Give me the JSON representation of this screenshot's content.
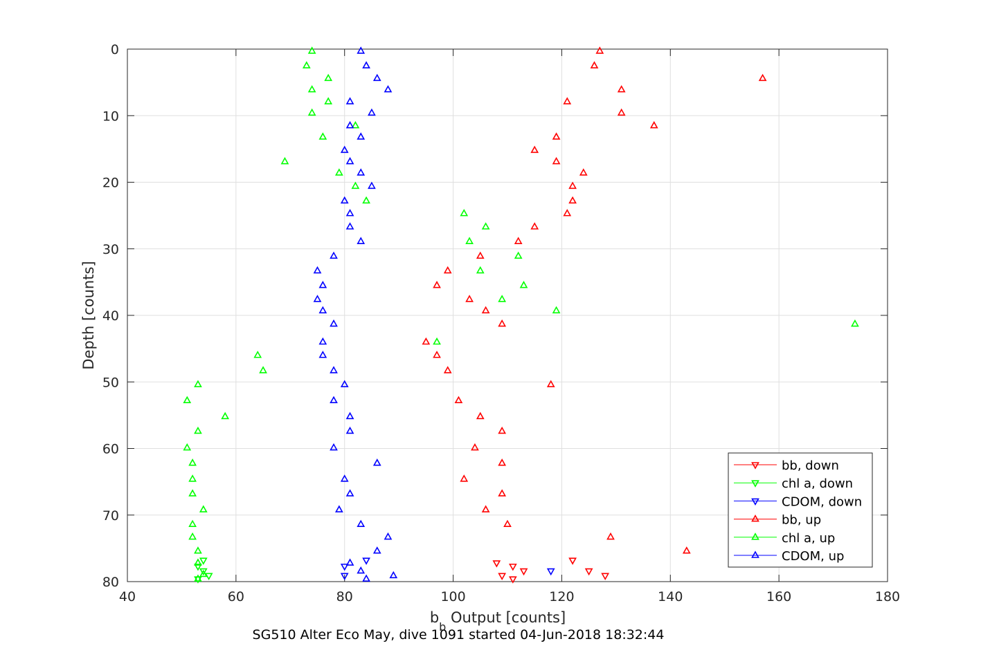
{
  "chart_data": {
    "type": "scatter",
    "xlabel_main": "b",
    "xlabel_sub": "b",
    "xlabel_rest": " Output [counts]",
    "ylabel": "Depth [counts]",
    "caption": "SG510 Alter Eco May, dive 1091 started 04-Jun-2018 18:32:44",
    "xlim": [
      40,
      180
    ],
    "ylim": [
      0,
      80
    ],
    "y_reversed": true,
    "xticks": [
      40,
      60,
      80,
      100,
      120,
      140,
      160,
      180
    ],
    "yticks": [
      0,
      10,
      20,
      30,
      40,
      50,
      60,
      70,
      80
    ],
    "grid": true,
    "legend_position": "bottom-right",
    "series": [
      {
        "name": "bb, down",
        "color": "#ff0000",
        "marker": "triangle-down",
        "points": [
          [
            122,
            76.8
          ],
          [
            111,
            77.7
          ],
          [
            108,
            77.2
          ],
          [
            113,
            78.4
          ],
          [
            125,
            78.4
          ],
          [
            128,
            79.1
          ],
          [
            109,
            79.1
          ],
          [
            111,
            79.6
          ]
        ]
      },
      {
        "name": "chl a, down",
        "color": "#00ff00",
        "marker": "triangle-down",
        "points": [
          [
            54,
            76.8
          ],
          [
            53,
            77.7
          ],
          [
            54,
            78.4
          ],
          [
            55,
            79.1
          ],
          [
            53,
            79.6
          ]
        ]
      },
      {
        "name": "CDOM, down",
        "color": "#0000ff",
        "marker": "triangle-down",
        "points": [
          [
            84,
            76.8
          ],
          [
            80,
            77.7
          ],
          [
            118,
            78.4
          ],
          [
            80,
            79.1
          ]
        ]
      },
      {
        "name": "bb, up",
        "color": "#ff0000",
        "marker": "triangle-up",
        "points": [
          [
            127,
            0.3
          ],
          [
            126,
            2.5
          ],
          [
            157,
            4.4
          ],
          [
            131,
            6.1
          ],
          [
            121,
            7.9
          ],
          [
            131,
            9.6
          ],
          [
            137,
            11.5
          ],
          [
            119,
            13.2
          ],
          [
            115,
            15.2
          ],
          [
            119,
            16.9
          ],
          [
            124,
            18.6
          ],
          [
            122,
            20.6
          ],
          [
            122,
            22.8
          ],
          [
            121,
            24.7
          ],
          [
            115,
            26.7
          ],
          [
            112,
            28.9
          ],
          [
            105,
            31.1
          ],
          [
            99,
            33.3
          ],
          [
            97,
            35.5
          ],
          [
            103,
            37.6
          ],
          [
            106,
            39.3
          ],
          [
            109,
            41.3
          ],
          [
            95,
            44
          ],
          [
            97,
            46
          ],
          [
            99,
            48.3
          ],
          [
            118,
            50.4
          ],
          [
            101,
            52.8
          ],
          [
            105,
            55.2
          ],
          [
            109,
            57.4
          ],
          [
            104,
            59.9
          ],
          [
            109,
            62.2
          ],
          [
            102,
            64.6
          ],
          [
            109,
            66.8
          ],
          [
            106,
            69.2
          ],
          [
            110,
            71.4
          ],
          [
            129,
            73.3
          ],
          [
            143,
            75.4
          ]
        ]
      },
      {
        "name": "chl a, up",
        "color": "#00ff00",
        "marker": "triangle-up",
        "points": [
          [
            74,
            0.3
          ],
          [
            73,
            2.5
          ],
          [
            77,
            4.4
          ],
          [
            74,
            6.1
          ],
          [
            77,
            7.9
          ],
          [
            74,
            9.6
          ],
          [
            82,
            11.5
          ],
          [
            76,
            13.2
          ],
          [
            69,
            16.9
          ],
          [
            79,
            18.6
          ],
          [
            82,
            20.6
          ],
          [
            84,
            22.8
          ],
          [
            102,
            24.7
          ],
          [
            106,
            26.7
          ],
          [
            103,
            28.9
          ],
          [
            112,
            31.1
          ],
          [
            105,
            33.3
          ],
          [
            113,
            35.5
          ],
          [
            109,
            37.6
          ],
          [
            119,
            39.3
          ],
          [
            174,
            41.3
          ],
          [
            97,
            44
          ],
          [
            64,
            46
          ],
          [
            65,
            48.3
          ],
          [
            53,
            50.4
          ],
          [
            51,
            52.8
          ],
          [
            58,
            55.2
          ],
          [
            53,
            57.4
          ],
          [
            51,
            59.9
          ],
          [
            52,
            62.2
          ],
          [
            52,
            64.6
          ],
          [
            52,
            66.8
          ],
          [
            54,
            69.2
          ],
          [
            52,
            71.4
          ],
          [
            52,
            73.3
          ],
          [
            53,
            75.4
          ],
          [
            53,
            77.2
          ],
          [
            54,
            78.9
          ],
          [
            53,
            79.6
          ]
        ]
      },
      {
        "name": "CDOM, up",
        "color": "#0000ff",
        "marker": "triangle-up",
        "points": [
          [
            83,
            0.3
          ],
          [
            84,
            2.5
          ],
          [
            86,
            4.4
          ],
          [
            88,
            6.1
          ],
          [
            81,
            7.9
          ],
          [
            85,
            9.6
          ],
          [
            81,
            11.5
          ],
          [
            83,
            13.2
          ],
          [
            80,
            15.2
          ],
          [
            81,
            16.9
          ],
          [
            83,
            18.6
          ],
          [
            85,
            20.6
          ],
          [
            80,
            22.8
          ],
          [
            81,
            24.7
          ],
          [
            81,
            26.7
          ],
          [
            83,
            28.9
          ],
          [
            78,
            31.1
          ],
          [
            75,
            33.3
          ],
          [
            76,
            35.5
          ],
          [
            75,
            37.6
          ],
          [
            76,
            39.3
          ],
          [
            78,
            41.3
          ],
          [
            76,
            44
          ],
          [
            76,
            46
          ],
          [
            78,
            48.3
          ],
          [
            80,
            50.4
          ],
          [
            78,
            52.8
          ],
          [
            81,
            55.2
          ],
          [
            81,
            57.4
          ],
          [
            78,
            59.9
          ],
          [
            86,
            62.2
          ],
          [
            80,
            64.6
          ],
          [
            81,
            66.8
          ],
          [
            79,
            69.2
          ],
          [
            83,
            71.4
          ],
          [
            88,
            73.3
          ],
          [
            86,
            75.4
          ],
          [
            81,
            77.2
          ],
          [
            83,
            78.4
          ],
          [
            89,
            79.1
          ],
          [
            84,
            79.6
          ]
        ]
      }
    ]
  }
}
